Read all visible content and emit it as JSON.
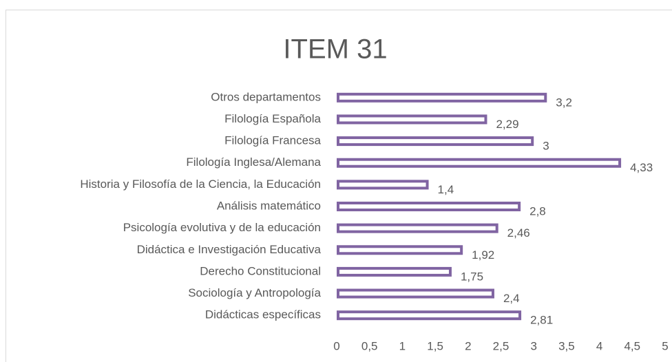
{
  "chart_data": {
    "type": "bar",
    "orientation": "horizontal",
    "title": "ITEM 31",
    "categories": [
      "Otros departamentos",
      "Filología Española",
      "Filología Francesa",
      "Filología Inglesa/Alemana",
      "Historia y Filosofía de la Ciencia, la Educación",
      "Análisis matemático",
      "Psicología evolutiva y de la educación",
      "Didáctica e Investigación Educativa",
      "Derecho Constitucional",
      "Sociología y Antropología",
      "Didácticas específicas"
    ],
    "values": [
      3.2,
      2.29,
      3,
      4.33,
      1.4,
      2.8,
      2.46,
      1.92,
      1.75,
      2.4,
      2.81
    ],
    "value_labels": [
      "3,2",
      "2,29",
      "3",
      "4,33",
      "1,4",
      "2,8",
      "2,46",
      "1,92",
      "1,75",
      "2,4",
      "2,81"
    ],
    "color": "#8064a2",
    "xlim": [
      0,
      5
    ],
    "xticks": [
      0,
      {
        "value": 0.5,
        "label": "0,5"
      },
      1,
      {
        "value": 1.5,
        "label": "1,5"
      },
      2,
      {
        "value": 2.5,
        "label": "2,5"
      },
      3,
      {
        "value": 3.5,
        "label": "3,5"
      },
      4,
      {
        "value": 4.5,
        "label": "4,5"
      },
      5
    ],
    "grid": false
  }
}
